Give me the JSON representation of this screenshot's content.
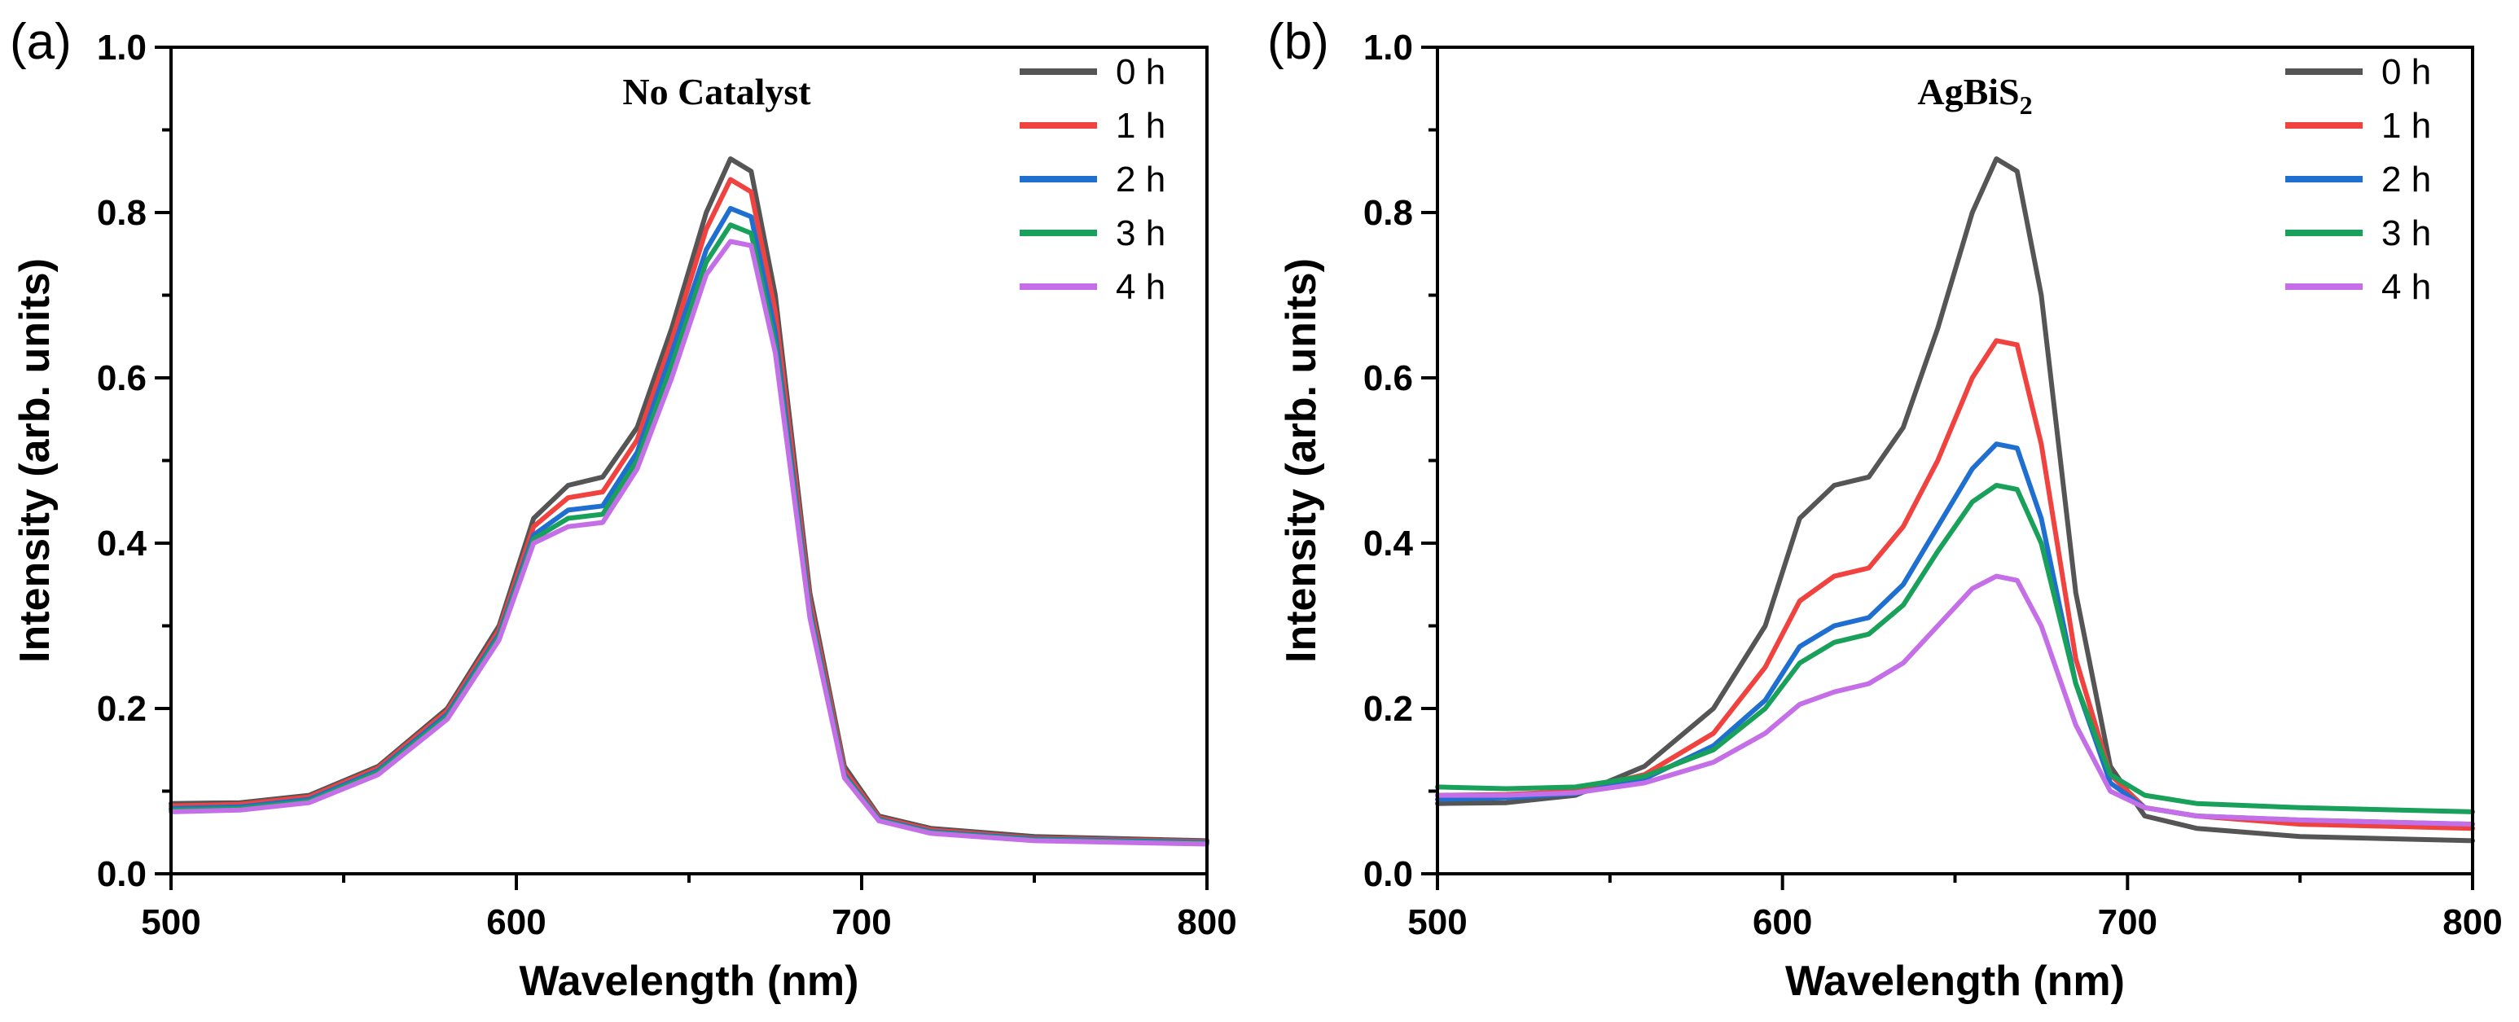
{
  "chart_data": [
    {
      "panel_label": "(a)",
      "type": "line",
      "title": "No Catalyst",
      "xlabel": "Wavelength (nm)",
      "ylabel": "Intensity (arb. units)",
      "xlim": [
        500,
        800
      ],
      "ylim": [
        0.0,
        1.0
      ],
      "x_ticks": [
        "500",
        "600",
        "700",
        "800"
      ],
      "y_ticks": [
        "0.0",
        "0.2",
        "0.4",
        "0.6",
        "0.8",
        "1.0"
      ],
      "legend_position": "top-right",
      "x": [
        500,
        520,
        540,
        560,
        580,
        595,
        605,
        615,
        625,
        635,
        645,
        655,
        662,
        668,
        675,
        685,
        695,
        705,
        720,
        750,
        800
      ],
      "series": [
        {
          "name": "0 h",
          "color": "#555555",
          "values": [
            0.085,
            0.086,
            0.095,
            0.13,
            0.2,
            0.3,
            0.43,
            0.47,
            0.48,
            0.54,
            0.66,
            0.8,
            0.865,
            0.85,
            0.7,
            0.34,
            0.13,
            0.07,
            0.055,
            0.045,
            0.04
          ]
        },
        {
          "name": "1 h",
          "color": "#f0423f",
          "values": [
            0.082,
            0.084,
            0.093,
            0.128,
            0.197,
            0.295,
            0.42,
            0.455,
            0.462,
            0.525,
            0.645,
            0.78,
            0.84,
            0.825,
            0.68,
            0.33,
            0.125,
            0.068,
            0.053,
            0.043,
            0.039
          ]
        },
        {
          "name": "2 h",
          "color": "#1f6fd1",
          "values": [
            0.079,
            0.081,
            0.09,
            0.125,
            0.193,
            0.29,
            0.41,
            0.44,
            0.445,
            0.51,
            0.63,
            0.755,
            0.805,
            0.795,
            0.655,
            0.32,
            0.12,
            0.066,
            0.051,
            0.042,
            0.038
          ]
        },
        {
          "name": "3 h",
          "color": "#19a05b",
          "values": [
            0.077,
            0.079,
            0.088,
            0.123,
            0.19,
            0.287,
            0.405,
            0.43,
            0.435,
            0.5,
            0.615,
            0.74,
            0.785,
            0.775,
            0.64,
            0.315,
            0.118,
            0.065,
            0.05,
            0.041,
            0.037
          ]
        },
        {
          "name": "4 h",
          "color": "#c46ee8",
          "values": [
            0.075,
            0.077,
            0.086,
            0.12,
            0.187,
            0.283,
            0.4,
            0.42,
            0.425,
            0.49,
            0.6,
            0.725,
            0.765,
            0.76,
            0.63,
            0.31,
            0.116,
            0.064,
            0.049,
            0.04,
            0.036
          ]
        }
      ]
    },
    {
      "panel_label": "(b)",
      "type": "line",
      "title": "AgBiS",
      "title_subscript": "2",
      "xlabel": "Wavelength (nm)",
      "ylabel": "Intensity (arb. units)",
      "xlim": [
        500,
        800
      ],
      "ylim": [
        0.0,
        1.0
      ],
      "x_ticks": [
        "500",
        "600",
        "700",
        "800"
      ],
      "y_ticks": [
        "0.0",
        "0.2",
        "0.4",
        "0.6",
        "0.8",
        "1.0"
      ],
      "legend_position": "top-right",
      "x": [
        500,
        520,
        540,
        560,
        580,
        595,
        605,
        615,
        625,
        635,
        645,
        655,
        662,
        668,
        675,
        685,
        695,
        705,
        720,
        750,
        800
      ],
      "series": [
        {
          "name": "0 h",
          "color": "#555555",
          "values": [
            0.085,
            0.086,
            0.095,
            0.13,
            0.2,
            0.3,
            0.43,
            0.47,
            0.48,
            0.54,
            0.66,
            0.8,
            0.865,
            0.85,
            0.7,
            0.34,
            0.13,
            0.07,
            0.055,
            0.045,
            0.04
          ]
        },
        {
          "name": "1 h",
          "color": "#f0423f",
          "values": [
            0.095,
            0.096,
            0.1,
            0.12,
            0.17,
            0.25,
            0.33,
            0.36,
            0.37,
            0.42,
            0.5,
            0.6,
            0.645,
            0.64,
            0.52,
            0.26,
            0.12,
            0.08,
            0.07,
            0.06,
            0.055
          ]
        },
        {
          "name": "2 h",
          "color": "#1f6fd1",
          "values": [
            0.09,
            0.092,
            0.097,
            0.115,
            0.155,
            0.21,
            0.275,
            0.3,
            0.31,
            0.35,
            0.42,
            0.49,
            0.52,
            0.515,
            0.43,
            0.23,
            0.11,
            0.08,
            0.07,
            0.065,
            0.06
          ]
        },
        {
          "name": "3 h",
          "color": "#19a05b",
          "values": [
            0.105,
            0.103,
            0.105,
            0.118,
            0.15,
            0.2,
            0.255,
            0.28,
            0.29,
            0.325,
            0.39,
            0.45,
            0.47,
            0.465,
            0.4,
            0.23,
            0.12,
            0.095,
            0.085,
            0.08,
            0.075
          ]
        },
        {
          "name": "4 h",
          "color": "#c46ee8",
          "values": [
            0.095,
            0.095,
            0.098,
            0.11,
            0.135,
            0.17,
            0.205,
            0.22,
            0.23,
            0.255,
            0.3,
            0.345,
            0.36,
            0.355,
            0.3,
            0.18,
            0.1,
            0.08,
            0.07,
            0.065,
            0.06
          ]
        }
      ]
    }
  ]
}
